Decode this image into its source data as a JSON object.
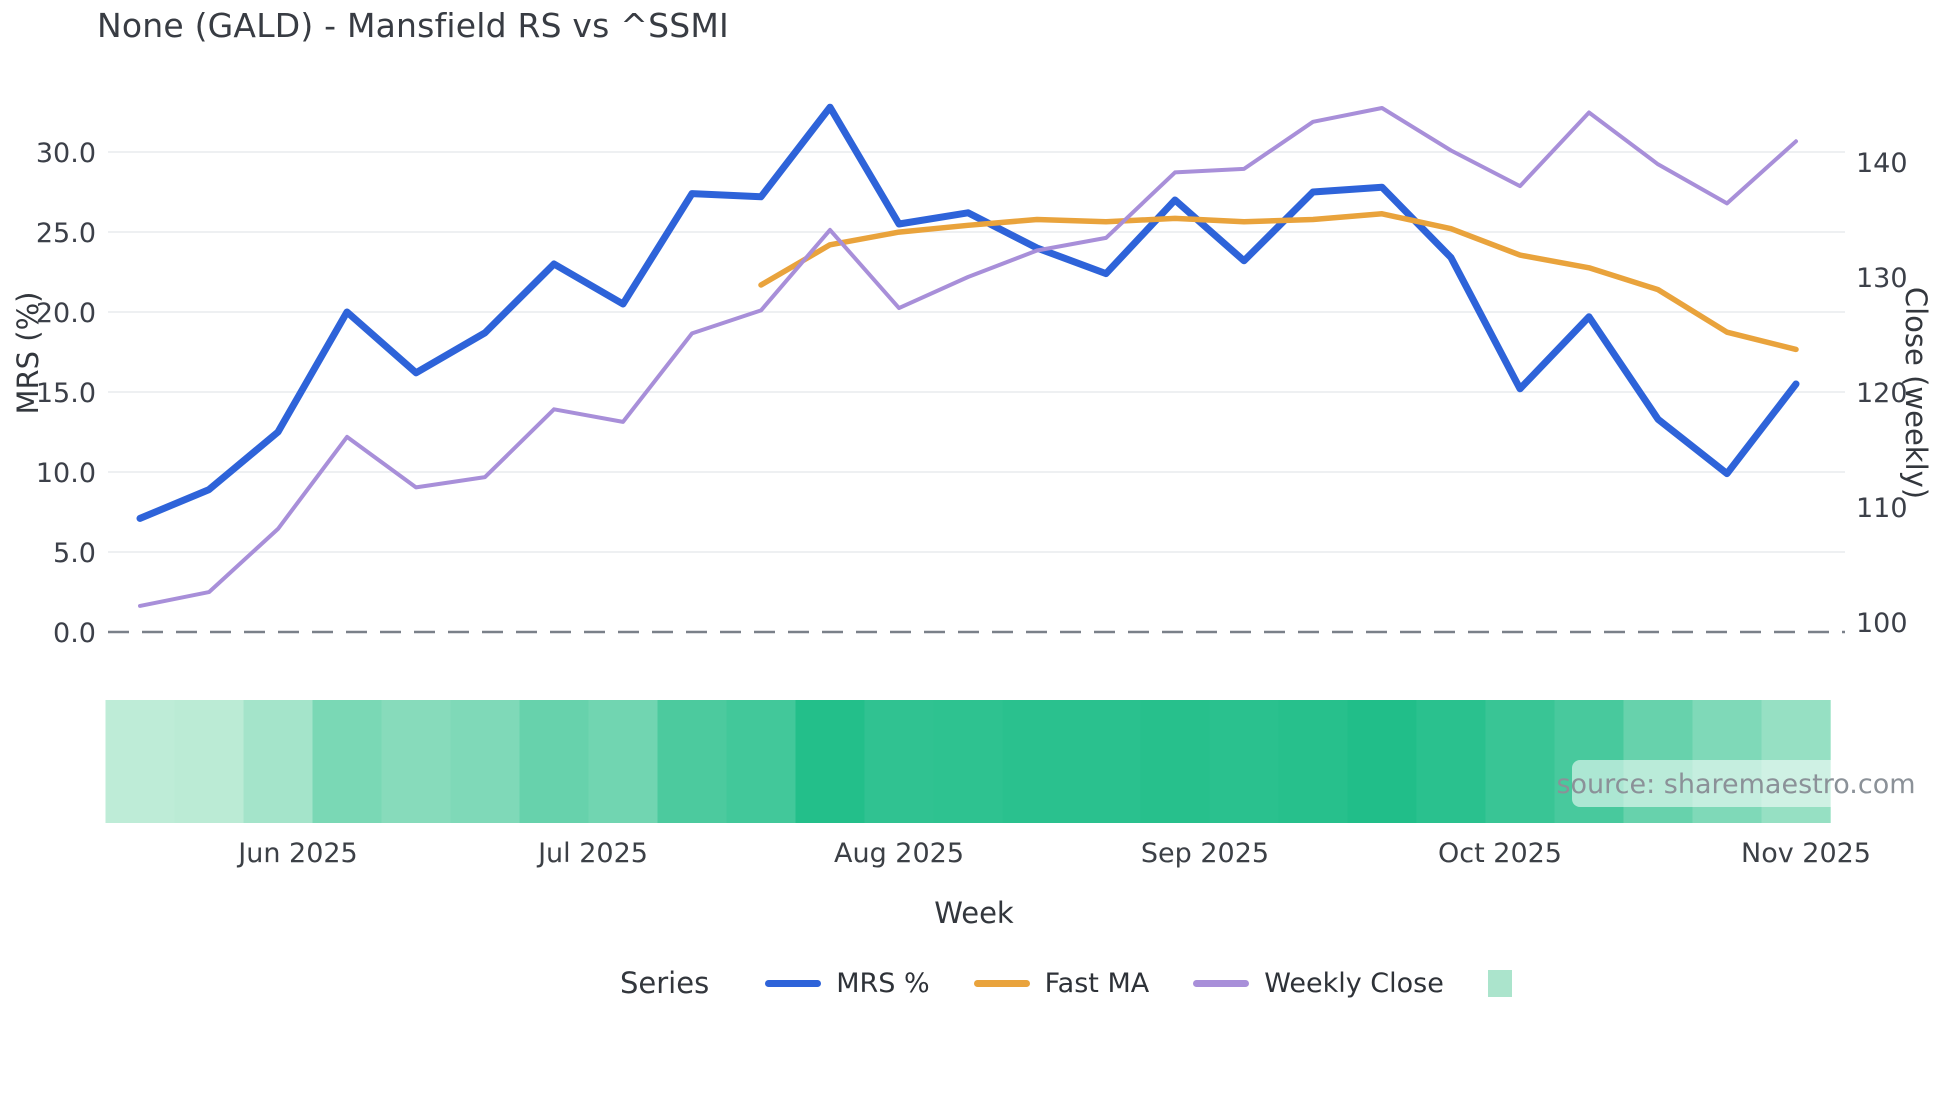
{
  "chart_data": {
    "type": "line",
    "title": "None (GALD) - Mansfield RS vs ^SSMI",
    "xlabel": "Week",
    "legend_title": "Series",
    "source_text": "source: sharemaestro.com",
    "grid": true,
    "legend_position": "bottom",
    "left_axis": {
      "label": "MRS (%)",
      "ticks": [
        0.0,
        5.0,
        10.0,
        15.0,
        20.0,
        25.0,
        30.0
      ],
      "range": [
        0,
        35.7
      ],
      "zero_line_dashed": true
    },
    "right_axis": {
      "label": "Close (weekly)",
      "ticks": [
        100,
        110,
        120,
        130,
        140
      ],
      "range": [
        97.9,
        146.9
      ]
    },
    "x_axis": {
      "tick_labels": [
        "Jun 2025",
        "Jul 2025",
        "Aug 2025",
        "Sep 2025",
        "Oct 2025",
        "Nov 2025"
      ],
      "tick_week_positions": [
        2.29,
        6.57,
        11.0,
        15.43,
        19.71,
        24.14
      ],
      "weeks_total": 25
    },
    "series": [
      {
        "name": "MRS %",
        "axis": "left",
        "color": "#2e63d9",
        "stroke_width": 7,
        "start_week": 0,
        "values": [
          7.1,
          8.9,
          12.5,
          20.0,
          16.2,
          18.7,
          23.0,
          20.5,
          27.4,
          27.2,
          32.8,
          25.5,
          26.2,
          24.0,
          22.4,
          27.0,
          23.2,
          27.5,
          27.8,
          23.4,
          15.2,
          19.7,
          13.3,
          9.9,
          15.5
        ]
      },
      {
        "name": "Fast MA",
        "axis": "right",
        "color": "#e9a33c",
        "stroke_width": 5.5,
        "start_week": 9,
        "values": [
          129.3,
          132.8,
          133.9,
          134.5,
          135.0,
          134.8,
          135.1,
          134.8,
          135.0,
          135.5,
          134.2,
          131.9,
          130.8,
          128.9,
          125.2,
          123.7
        ]
      },
      {
        "name": "Weekly Close",
        "axis": "right",
        "color": "#a88fd9",
        "stroke_width": 4,
        "start_week": 0,
        "values": [
          101.4,
          102.6,
          108.1,
          116.1,
          111.7,
          112.6,
          118.5,
          117.4,
          125.1,
          127.1,
          134.1,
          127.3,
          130.0,
          132.3,
          133.4,
          139.1,
          139.4,
          143.5,
          144.7,
          141.0,
          137.9,
          144.3,
          139.8,
          136.4,
          141.8
        ]
      }
    ],
    "band": {
      "legend_swatch_color": "#abe4cc",
      "cell_colors": [
        "#beecd7",
        "#bbebd5",
        "#a4e4ca",
        "#7ad8b5",
        "#87dbbb",
        "#7fd9b8",
        "#67d2ac",
        "#71d5b1",
        "#4cca9e",
        "#42c89a",
        "#23bf8a",
        "#30c291",
        "#2ec290",
        "#2ac18e",
        "#2ac18e",
        "#27c08c",
        "#2ac18e",
        "#27c08c",
        "#21be89",
        "#2ac18e",
        "#39c595",
        "#48c99d",
        "#67d2ac",
        "#7fd9b8",
        "#96e0c3"
      ]
    }
  }
}
